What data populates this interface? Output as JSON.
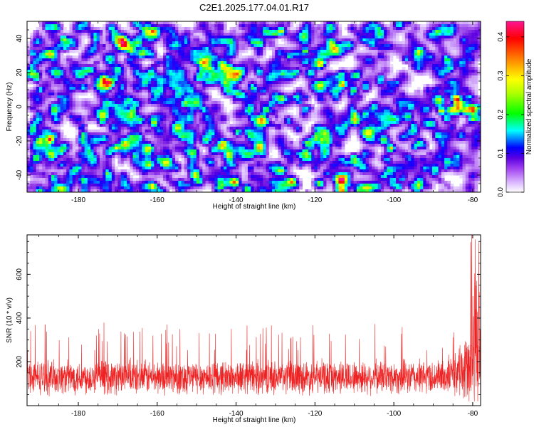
{
  "title": "C2E1.2025.177.04.01.R17",
  "chart_data": [
    {
      "type": "heatmap",
      "title": "C2E1.2025.177.04.01.R17",
      "xlabel": "Height of straight line (km)",
      "ylabel": "Frequency (Hz)",
      "xlim": [
        -193,
        -78
      ],
      "ylim": [
        -50,
        50
      ],
      "x_ticks": [
        -180,
        -160,
        -140,
        -120,
        -100,
        -80
      ],
      "y_ticks": [
        -40,
        -20,
        0,
        20,
        40
      ],
      "colorbar": {
        "label": "Normalized spectral amplitude",
        "range": [
          0,
          0.44
        ],
        "ticks": [
          0.0,
          0.1,
          0.2,
          0.3,
          0.4
        ],
        "colormap": [
          "#ffffff",
          "#c080f0",
          "#8a2be2",
          "#5a00e0",
          "#0000ff",
          "#00ffff",
          "#00ff00",
          "#ffff00",
          "#ff8000",
          "#ff0000",
          "#ff007f"
        ]
      },
      "description_values": {
        "background_amplitude": [
          0.0,
          0.12
        ],
        "peak_location": {
          "x": -80,
          "y": 0
        },
        "peak_amplitude": 0.43
      },
      "grid": false
    },
    {
      "type": "line",
      "xlabel": "Height of straight line (km)",
      "ylabel": "SNR (10 * v/v)",
      "xlim": [
        -193,
        -78
      ],
      "ylim": [
        0,
        780
      ],
      "x_ticks": [
        -180,
        -160,
        -140,
        -120,
        -100,
        -80
      ],
      "y_ticks": [
        200,
        400,
        600
      ],
      "series": [
        {
          "color": "#ee2222",
          "baseline": 130,
          "noise_band": [
            40,
            260
          ],
          "spikes_max": 380,
          "end_rise": {
            "x_start": -90,
            "x_end": -78,
            "peak": 780
          }
        }
      ],
      "grid": false
    }
  ]
}
